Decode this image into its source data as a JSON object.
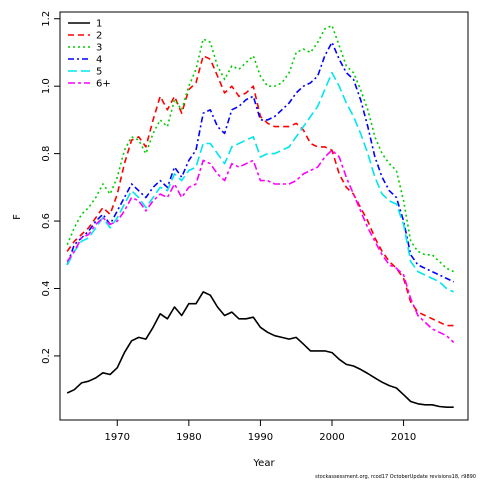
{
  "chart_data": {
    "type": "line",
    "title": "",
    "xlabel": "Year",
    "ylabel": "F",
    "xlim": [
      1962,
      2019
    ],
    "ylim": [
      0.01,
      1.22
    ],
    "x_ticks": [
      1970,
      1980,
      1990,
      2000,
      2010
    ],
    "y_ticks": [
      0.2,
      0.4,
      0.6,
      0.8,
      1.0,
      1.2
    ],
    "y_tick_labels": [
      "0.2",
      "0.4",
      "0.6",
      "0.8",
      "1.0",
      "1.2"
    ],
    "grid": false,
    "legend_position": "top-left",
    "footer": "stockassessment.org, rcod17 OctoberUpdate revisions18, r9890",
    "x": [
      1963,
      1964,
      1965,
      1966,
      1967,
      1968,
      1969,
      1970,
      1971,
      1972,
      1973,
      1974,
      1975,
      1976,
      1977,
      1978,
      1979,
      1980,
      1981,
      1982,
      1983,
      1984,
      1985,
      1986,
      1987,
      1988,
      1989,
      1990,
      1991,
      1992,
      1993,
      1994,
      1995,
      1996,
      1997,
      1998,
      1999,
      2000,
      2001,
      2002,
      2003,
      2004,
      2005,
      2006,
      2007,
      2008,
      2009,
      2010,
      2011,
      2012,
      2013,
      2014,
      2015,
      2016,
      2017
    ],
    "series": [
      {
        "name": "1",
        "color": "#000000",
        "dash": "solid",
        "values": [
          0.09,
          0.1,
          0.12,
          0.125,
          0.135,
          0.15,
          0.145,
          0.165,
          0.21,
          0.245,
          0.255,
          0.25,
          0.285,
          0.325,
          0.31,
          0.345,
          0.32,
          0.355,
          0.355,
          0.39,
          0.38,
          0.345,
          0.32,
          0.33,
          0.31,
          0.31,
          0.315,
          0.285,
          0.27,
          0.26,
          0.255,
          0.25,
          0.255,
          0.235,
          0.215,
          0.215,
          0.215,
          0.21,
          0.19,
          0.175,
          0.17,
          0.16,
          0.148,
          0.135,
          0.122,
          0.112,
          0.105,
          0.085,
          0.065,
          0.058,
          0.055,
          0.055,
          0.05,
          0.048,
          0.048
        ]
      },
      {
        "name": "2",
        "color": "#ff0000",
        "dash": "dashed",
        "values": [
          0.51,
          0.54,
          0.56,
          0.58,
          0.61,
          0.64,
          0.62,
          0.68,
          0.77,
          0.84,
          0.85,
          0.82,
          0.9,
          0.97,
          0.93,
          0.97,
          0.92,
          0.99,
          1.01,
          1.09,
          1.08,
          1.03,
          0.98,
          1.0,
          0.97,
          0.98,
          1.0,
          0.91,
          0.89,
          0.88,
          0.88,
          0.88,
          0.89,
          0.87,
          0.83,
          0.82,
          0.82,
          0.81,
          0.74,
          0.7,
          0.68,
          0.64,
          0.6,
          0.55,
          0.51,
          0.48,
          0.46,
          0.43,
          0.36,
          0.33,
          0.32,
          0.31,
          0.3,
          0.29,
          0.29
        ]
      },
      {
        "name": "3",
        "color": "#00cd00",
        "dash": "dotted",
        "values": [
          0.53,
          0.58,
          0.62,
          0.64,
          0.67,
          0.71,
          0.68,
          0.73,
          0.81,
          0.85,
          0.84,
          0.8,
          0.86,
          0.9,
          0.88,
          0.96,
          0.93,
          1.0,
          1.05,
          1.14,
          1.13,
          1.06,
          1.02,
          1.06,
          1.05,
          1.07,
          1.09,
          1.03,
          1.0,
          1.0,
          1.01,
          1.04,
          1.1,
          1.11,
          1.1,
          1.13,
          1.17,
          1.18,
          1.12,
          1.06,
          1.04,
          0.99,
          0.93,
          0.85,
          0.8,
          0.77,
          0.75,
          0.66,
          0.54,
          0.51,
          0.5,
          0.5,
          0.48,
          0.46,
          0.45
        ]
      },
      {
        "name": "4",
        "color": "#0000ff",
        "dash": "dashdot",
        "values": [
          0.47,
          0.53,
          0.55,
          0.57,
          0.6,
          0.62,
          0.59,
          0.63,
          0.67,
          0.71,
          0.69,
          0.67,
          0.7,
          0.72,
          0.7,
          0.76,
          0.73,
          0.78,
          0.81,
          0.92,
          0.93,
          0.88,
          0.86,
          0.93,
          0.94,
          0.96,
          0.97,
          0.9,
          0.9,
          0.91,
          0.93,
          0.95,
          0.98,
          1.0,
          1.01,
          1.03,
          1.09,
          1.13,
          1.08,
          1.04,
          1.02,
          0.96,
          0.88,
          0.79,
          0.73,
          0.69,
          0.67,
          0.6,
          0.5,
          0.47,
          0.46,
          0.45,
          0.44,
          0.43,
          0.42
        ]
      },
      {
        "name": "5",
        "color": "#00e5ee",
        "dash": "longdash",
        "values": [
          0.47,
          0.51,
          0.54,
          0.55,
          0.58,
          0.61,
          0.58,
          0.61,
          0.65,
          0.69,
          0.67,
          0.64,
          0.67,
          0.7,
          0.69,
          0.74,
          0.72,
          0.75,
          0.76,
          0.83,
          0.83,
          0.8,
          0.77,
          0.82,
          0.83,
          0.84,
          0.85,
          0.79,
          0.8,
          0.8,
          0.81,
          0.82,
          0.85,
          0.88,
          0.91,
          0.94,
          0.99,
          1.04,
          1.0,
          0.95,
          0.91,
          0.86,
          0.8,
          0.73,
          0.68,
          0.66,
          0.65,
          0.59,
          0.48,
          0.45,
          0.44,
          0.43,
          0.42,
          0.4,
          0.39
        ]
      },
      {
        "name": "6+",
        "color": "#ff00ff",
        "dash": "twodash",
        "values": [
          0.48,
          0.51,
          0.55,
          0.56,
          0.59,
          0.61,
          0.59,
          0.6,
          0.63,
          0.67,
          0.66,
          0.63,
          0.66,
          0.68,
          0.67,
          0.71,
          0.67,
          0.7,
          0.71,
          0.78,
          0.77,
          0.74,
          0.72,
          0.77,
          0.76,
          0.77,
          0.78,
          0.72,
          0.72,
          0.71,
          0.71,
          0.71,
          0.72,
          0.74,
          0.75,
          0.76,
          0.79,
          0.81,
          0.79,
          0.73,
          0.68,
          0.63,
          0.58,
          0.54,
          0.5,
          0.47,
          0.46,
          0.44,
          0.37,
          0.32,
          0.3,
          0.28,
          0.27,
          0.26,
          0.24
        ]
      }
    ]
  }
}
